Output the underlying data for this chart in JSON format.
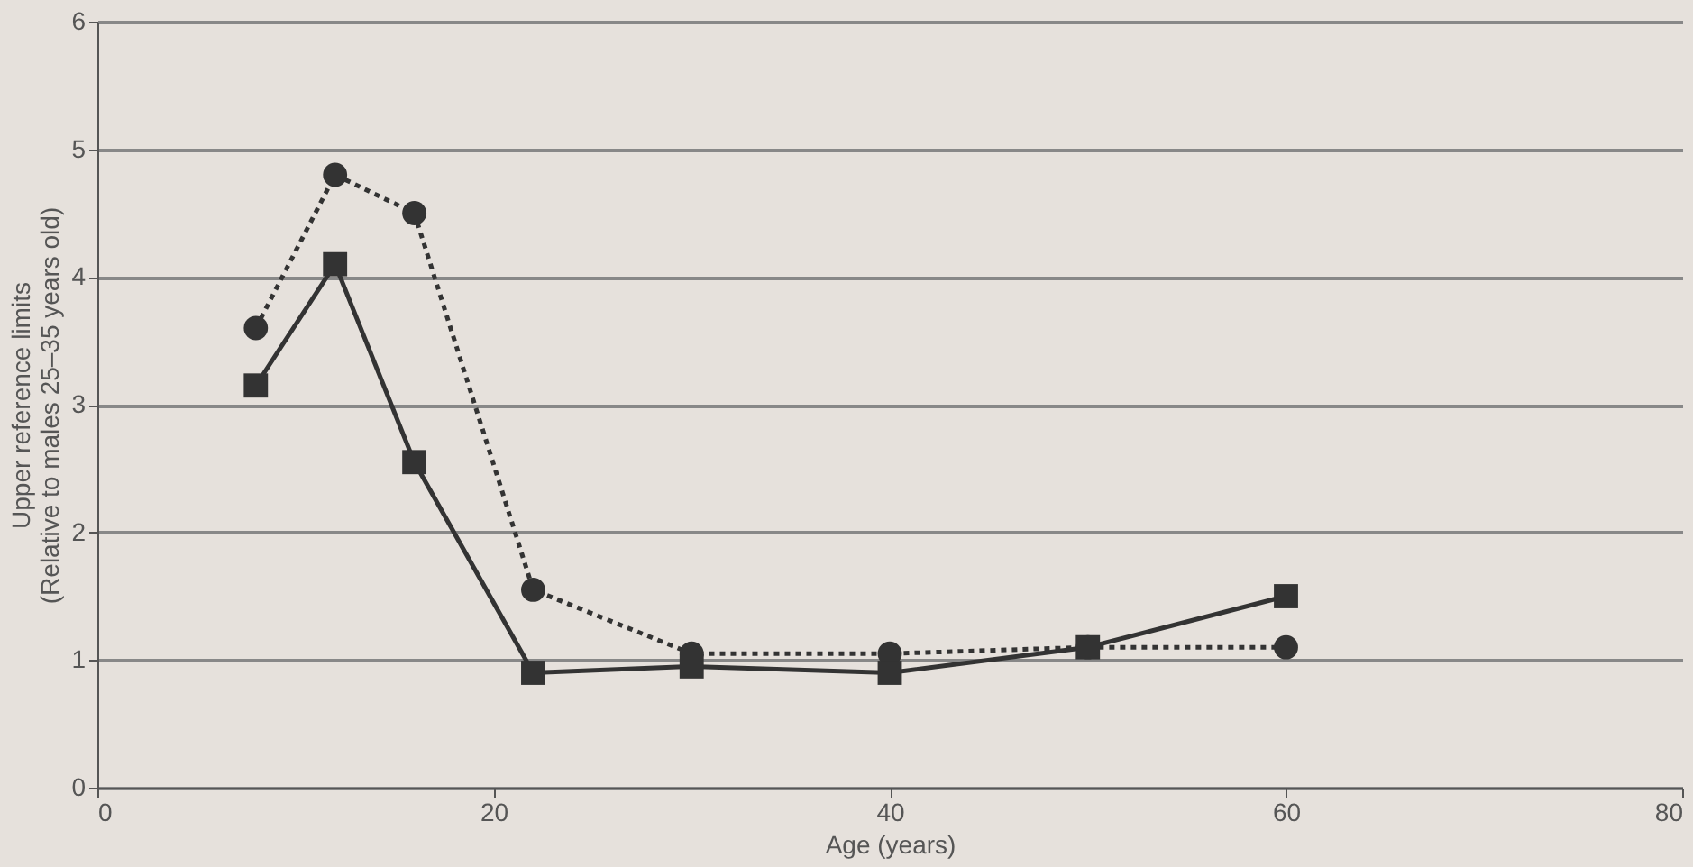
{
  "chart_data": {
    "type": "line",
    "xlabel": "Age (years)",
    "ylabel": "Upper reference limits\n(Relative to males 25–35 years old)",
    "xlim": [
      0,
      80
    ],
    "xticks": [
      0,
      20,
      40,
      60,
      80
    ],
    "ylim": [
      0,
      6
    ],
    "yticks": [
      0,
      1,
      2,
      3,
      4,
      5,
      6
    ],
    "grid": "y",
    "series": [
      {
        "color": "#333333",
        "marker": "circle",
        "line_style": "dotted",
        "x": [
          8,
          12,
          16,
          22,
          30,
          40,
          50,
          60
        ],
        "values": [
          3.6,
          4.8,
          4.5,
          1.55,
          1.05,
          1.05,
          1.1,
          1.1
        ]
      },
      {
        "color": "#333333",
        "marker": "square",
        "line_style": "solid",
        "x": [
          8,
          12,
          16,
          22,
          30,
          40,
          50,
          60
        ],
        "values": [
          3.15,
          4.1,
          2.55,
          0.9,
          0.95,
          0.9,
          1.1,
          1.5
        ]
      }
    ]
  }
}
